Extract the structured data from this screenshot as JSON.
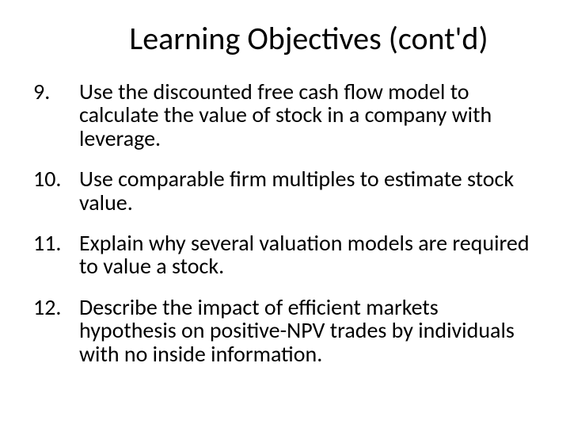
{
  "title_fontsize": 40,
  "body_fontsize": 28,
  "text_color": "#000000",
  "background_color": "#ffffff",
  "font_family": "Calibri",
  "slide": {
    "title": "Learning Objectives (cont'd)",
    "items": [
      {
        "num": "9.",
        "text": "Use the discounted free cash flow model to calculate the value of stock in a company with leverage."
      },
      {
        "num": "10.",
        "text": "Use comparable firm multiples to estimate stock value."
      },
      {
        "num": "11.",
        "text": "Explain why several valuation models are required to value a stock."
      },
      {
        "num": "12.",
        "text": "Describe the impact of efficient markets hypothesis on positive-NPV trades by individuals with no inside information."
      }
    ]
  }
}
